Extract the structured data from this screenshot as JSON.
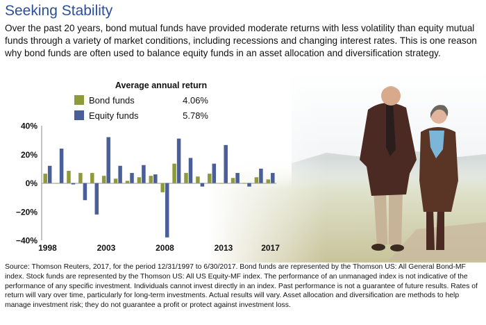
{
  "page": {
    "title": "Seeking Stability",
    "intro": "Over the past 20 years, bond mutual funds have provided moderate returns with less volatility than equity mutual funds through a variety of market conditions, including recessions and changing interest rates. This is one reason why bond funds are often used to balance equity funds in an asset allocation and diversification strategy.",
    "source": "Source: Thomson Reuters, 2017, for the period 12/31/1997 to 6/30/2017. Bond funds are represented by the Thomson US: All General Bond-MF index. Stock funds are represented by the Thomson US: All US Equity-MF index. The performance of an unmanaged index is not indicative of the performance of any specific investment. Individuals cannot invest directly in an index. Past performance is not a guarantee of future results. Rates of return will vary over time, particularly for long-term investments.  Actual results will vary.  Asset allocation and diversification are methods to help manage investment risk; they do not guarantee a profit or protect against investment loss."
  },
  "chart_data": {
    "type": "bar",
    "title": "Average annual return",
    "categories": [
      "1998",
      "1999",
      "2000",
      "2001",
      "2002",
      "2003",
      "2004",
      "2005",
      "2006",
      "2007",
      "2008",
      "2009",
      "2010",
      "2011",
      "2012",
      "2013",
      "2014",
      "2015",
      "2016",
      "2017"
    ],
    "x_tick_labels": [
      "1998",
      "2003",
      "2008",
      "2013",
      "2017"
    ],
    "y_ticks": [
      40,
      20,
      0,
      -20,
      -40
    ],
    "y_tick_labels": [
      "40%",
      "20%",
      "0%",
      "−20%",
      "−40%"
    ],
    "ylim": [
      -40,
      40
    ],
    "grid": false,
    "legend_position": "top-left",
    "series": [
      {
        "name": "Bond funds",
        "average_label": "4.06%",
        "color": "#8f9a3a",
        "values": [
          6.5,
          -0.5,
          8.5,
          7.0,
          7.0,
          5.0,
          3.0,
          1.5,
          4.0,
          5.0,
          -6.5,
          13.5,
          7.0,
          4.5,
          6.5,
          -0.5,
          3.5,
          -0.5,
          4.0,
          2.5
        ]
      },
      {
        "name": "Equity funds",
        "average_label": "5.78%",
        "color": "#4a5e97",
        "values": [
          12.0,
          24.0,
          -1.0,
          -12.0,
          -22.0,
          32.0,
          12.0,
          7.0,
          12.5,
          6.0,
          -38.0,
          31.0,
          17.5,
          -2.5,
          13.5,
          26.5,
          7.0,
          -2.5,
          10.0,
          7.0
        ]
      }
    ]
  }
}
